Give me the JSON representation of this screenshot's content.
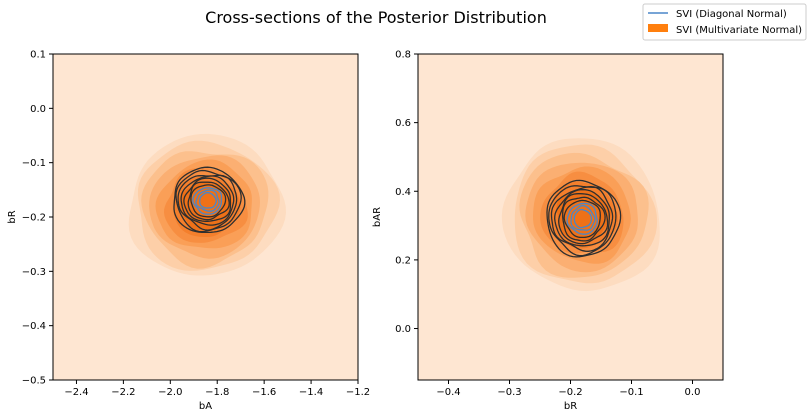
{
  "title": "Cross-sections of the Posterior Distribution",
  "legend": {
    "placement": "top-right",
    "items": [
      {
        "label": "SVI (Diagonal Normal)",
        "color": "#4a86c8",
        "kind": "line"
      },
      {
        "label": "SVI (Multivariate Normal)",
        "color": "#ff7f0e",
        "kind": "patch"
      }
    ]
  },
  "chart_data": [
    {
      "type": "kde-contour",
      "xlabel": "bA",
      "ylabel": "bR",
      "xlim": [
        -2.5,
        -1.2
      ],
      "ylim": [
        -0.5,
        0.1
      ],
      "xticks": [
        "−2.4",
        "−2.2",
        "−2.0",
        "−1.8",
        "−1.6",
        "−1.4",
        "−1.2"
      ],
      "xtick_values": [
        -2.4,
        -2.2,
        -2.0,
        -1.8,
        -1.6,
        -1.4,
        -1.2
      ],
      "yticks": [
        "−0.5",
        "−0.4",
        "−0.3",
        "−0.2",
        "−0.1",
        "0.0",
        "0.1"
      ],
      "ytick_values": [
        -0.5,
        -0.4,
        -0.3,
        -0.2,
        -0.1,
        0.0,
        0.1
      ],
      "grid": false,
      "series": [
        {
          "name": "SVI (Multivariate Normal)",
          "style": "filled",
          "center": [
            -1.85,
            -0.18
          ],
          "spread": [
            0.33,
            0.13
          ],
          "corr": 0.35,
          "levels": 9
        },
        {
          "name": "SVI (Diagonal Normal)",
          "style": "lines",
          "center": [
            -1.84,
            -0.17
          ],
          "spread": [
            0.15,
            0.06
          ],
          "corr": 0.0,
          "levels": 10
        }
      ]
    },
    {
      "type": "kde-contour",
      "xlabel": "bR",
      "ylabel": "bAR",
      "xlim": [
        -0.45,
        0.05
      ],
      "ylim": [
        -0.15,
        0.8
      ],
      "xticks": [
        "−0.4",
        "−0.3",
        "−0.2",
        "−0.1",
        "0.0"
      ],
      "xtick_values": [
        -0.4,
        -0.3,
        -0.2,
        -0.1,
        0.0
      ],
      "yticks": [
        "0.0",
        "0.2",
        "0.4",
        "0.6",
        "0.8"
      ],
      "ytick_values": [
        0.0,
        0.2,
        0.4,
        0.6,
        0.8
      ],
      "grid": false,
      "series": [
        {
          "name": "SVI (Multivariate Normal)",
          "style": "filled",
          "center": [
            -0.18,
            0.33
          ],
          "spread": [
            0.13,
            0.22
          ],
          "corr": -0.55,
          "levels": 9
        },
        {
          "name": "SVI (Diagonal Normal)",
          "style": "lines",
          "center": [
            -0.18,
            0.32
          ],
          "spread": [
            0.06,
            0.11
          ],
          "corr": 0.0,
          "levels": 10
        }
      ]
    }
  ]
}
